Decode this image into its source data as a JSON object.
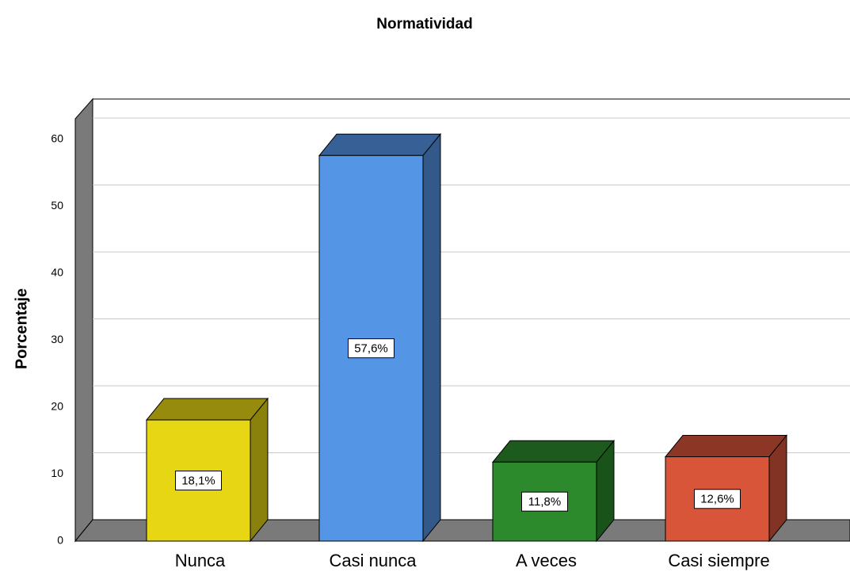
{
  "chart_data": {
    "type": "bar3d",
    "title": "Normatividad",
    "y_label": "Porcentaje",
    "categories": [
      "Nunca",
      "Casi nunca",
      "A veces",
      "Casi siempre"
    ],
    "values": [
      18.1,
      57.6,
      11.8,
      12.6
    ],
    "value_labels": [
      "18,1%",
      "57,6%",
      "11,8%",
      "12,6%"
    ],
    "colors": [
      "#e6d614",
      "#5595e6",
      "#2c8a2c",
      "#d8553a"
    ],
    "ylim": [
      0,
      60
    ],
    "yticks": [
      0,
      10,
      20,
      30,
      40,
      50,
      60
    ],
    "grid": true
  }
}
